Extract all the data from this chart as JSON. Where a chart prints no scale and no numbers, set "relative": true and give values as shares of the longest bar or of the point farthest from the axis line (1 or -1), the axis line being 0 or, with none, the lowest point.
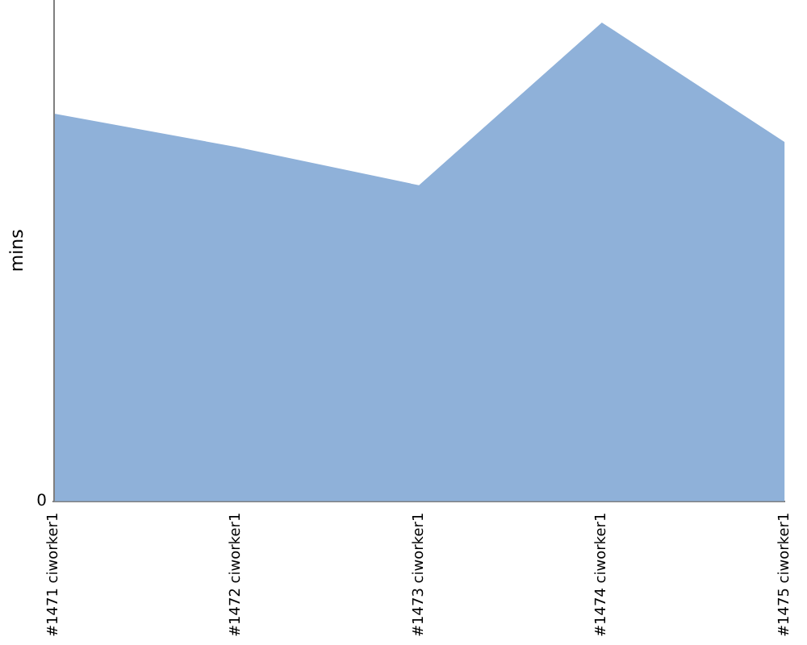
{
  "chart_data": {
    "type": "area",
    "relative": true,
    "ylabel": "mins",
    "annotations": [
      "0"
    ],
    "categories": [
      "#1471 ciworker1",
      "#1472 ciworker1",
      "#1473 ciworker1",
      "#1474 ciworker1",
      "#1475 ciworker1"
    ],
    "series": [
      {
        "color": "#8fb1d9",
        "values": [
          0.81,
          0.74,
          0.66,
          1,
          0.75
        ]
      }
    ],
    "grid": false,
    "legend": false
  }
}
